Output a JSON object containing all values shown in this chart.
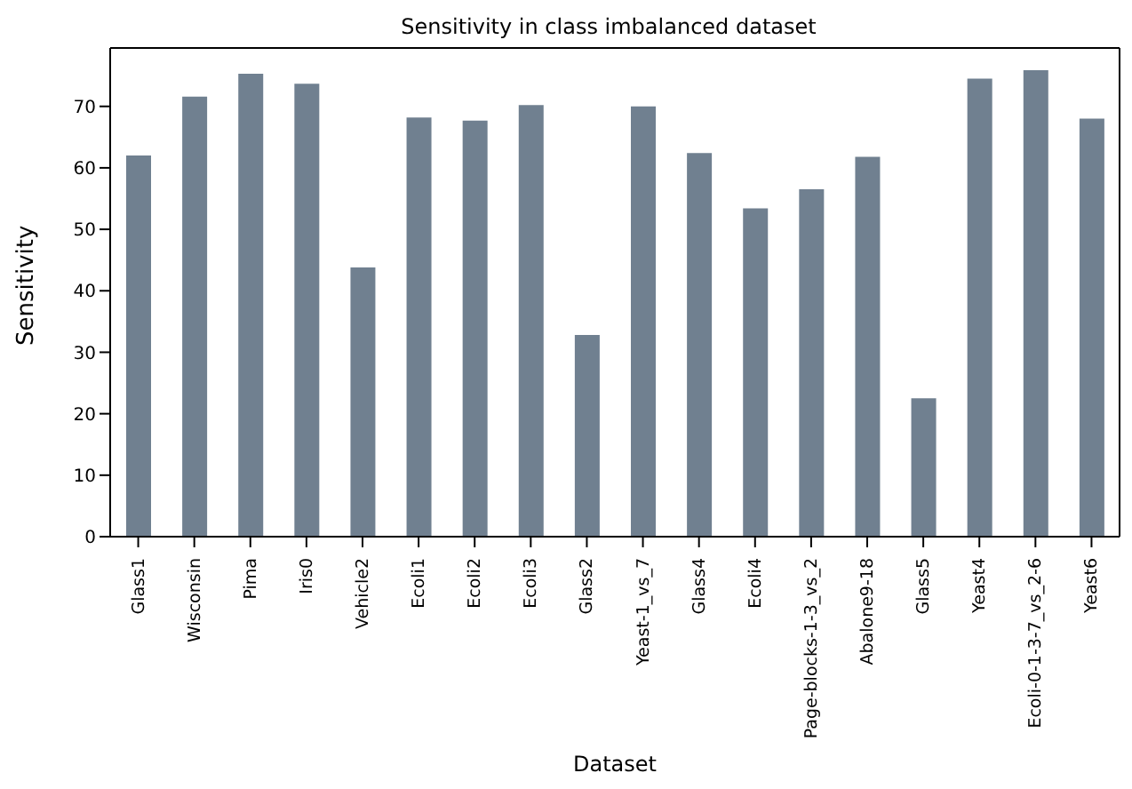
{
  "chart_data": {
    "type": "bar",
    "title": "Sensitivity in class imbalanced dataset",
    "xlabel": "Dataset",
    "ylabel": "Sensitivity",
    "categories": [
      "Glass1",
      "Wisconsin",
      "Pima",
      "Iris0",
      "Vehicle2",
      "Ecoli1",
      "Ecoli2",
      "Ecoli3",
      "Glass2",
      "Yeast-1_vs_7",
      "Glass4",
      "Ecoli4",
      "Page-blocks-1-3_vs_2",
      "Abalone9-18",
      "Glass5",
      "Yeast4",
      "Ecoli-0-1-3-7_vs_2-6",
      "Yeast6"
    ],
    "values": [
      62.0,
      71.6,
      75.3,
      73.7,
      43.8,
      68.2,
      67.7,
      70.2,
      32.8,
      70.0,
      62.4,
      53.4,
      56.5,
      61.8,
      22.5,
      74.5,
      75.9,
      68.0
    ],
    "color": "#708090",
    "ylim": [
      0,
      79.5
    ],
    "yticks": [
      0,
      10,
      20,
      30,
      40,
      50,
      60,
      70
    ],
    "grid": false,
    "legend": false
  }
}
